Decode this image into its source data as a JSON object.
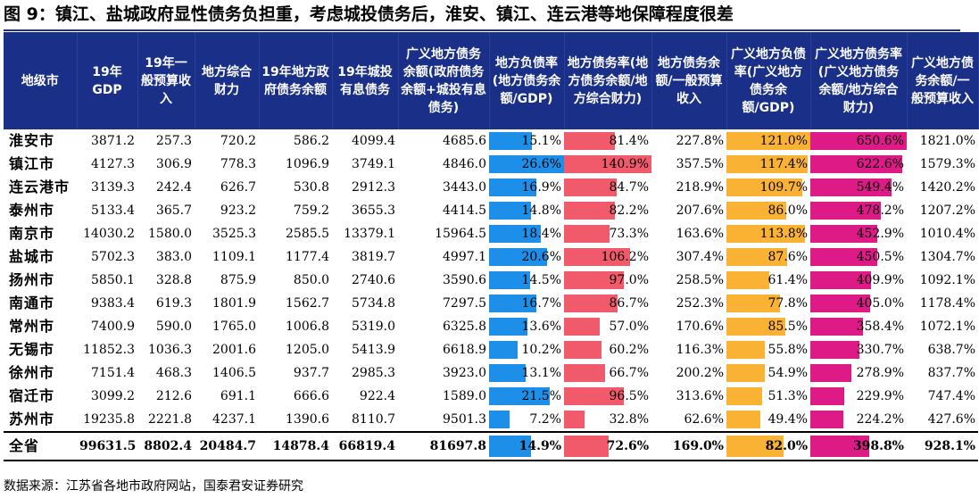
{
  "title": "图 9：镇江、盐城政府显性债务负担重，考虑城投债务后，淮安、镇江、连云港等地保障程度很差",
  "source": "数据来源：江苏省各地市政府网站，国泰君安证券研究",
  "colors": {
    "header_bg": "#1a2f88",
    "bar_blue": "#1e8fe8",
    "bar_red": "#f05a6a",
    "bar_orange": "#f9b234",
    "bar_magenta": "#dd1a86"
  },
  "headers": [
    "地级市",
    "19年GDP",
    "19年一般预算收入",
    "地方综合财力",
    "19年地方政府债务余额",
    "19年城投有息债务",
    "广义地方债务余额(政府债务余额+城投有息债务)",
    "地方负债率(地方债务余额/GDP)",
    "地方债务率(地方债务余额/地方综合财力)",
    "地方债务余额/一般预算收入",
    "广义地方负债率(广义地方债务余额/GDP)",
    "广义地方债务率(广义地方债务余额/地方综合财力)",
    "广义地方债务余额/一般预算收入"
  ],
  "rows": [
    {
      "city": "淮安市",
      "gdp": "3871.2",
      "budget": "257.3",
      "fiscal": "720.2",
      "gov_debt": "586.2",
      "lgfv_debt": "4099.4",
      "broad_debt": "4685.6",
      "r1": "15.1%",
      "r2": "81.4%",
      "r3": "227.8%",
      "r4": "121.0%",
      "r5": "650.6%",
      "r6": "1821.0%",
      "v1": 15.1,
      "v2": 81.4,
      "v4": 121.0,
      "v5": 650.6
    },
    {
      "city": "镇江市",
      "gdp": "4127.3",
      "budget": "306.9",
      "fiscal": "778.3",
      "gov_debt": "1096.9",
      "lgfv_debt": "3749.1",
      "broad_debt": "4846.0",
      "r1": "26.6%",
      "r2": "140.9%",
      "r3": "357.5%",
      "r4": "117.4%",
      "r5": "622.6%",
      "r6": "1579.3%",
      "v1": 26.6,
      "v2": 140.9,
      "v4": 117.4,
      "v5": 622.6
    },
    {
      "city": "连云港市",
      "gdp": "3139.3",
      "budget": "242.4",
      "fiscal": "626.7",
      "gov_debt": "530.8",
      "lgfv_debt": "2912.3",
      "broad_debt": "3443.0",
      "r1": "16.9%",
      "r2": "84.7%",
      "r3": "218.9%",
      "r4": "109.7%",
      "r5": "549.4%",
      "r6": "1420.2%",
      "v1": 16.9,
      "v2": 84.7,
      "v4": 109.7,
      "v5": 549.4
    },
    {
      "city": "泰州市",
      "gdp": "5133.4",
      "budget": "365.7",
      "fiscal": "923.2",
      "gov_debt": "759.2",
      "lgfv_debt": "3655.3",
      "broad_debt": "4414.5",
      "r1": "14.8%",
      "r2": "82.2%",
      "r3": "207.6%",
      "r4": "86.0%",
      "r5": "478.2%",
      "r6": "1207.2%",
      "v1": 14.8,
      "v2": 82.2,
      "v4": 86.0,
      "v5": 478.2
    },
    {
      "city": "南京市",
      "gdp": "14030.2",
      "budget": "1580.0",
      "fiscal": "3525.3",
      "gov_debt": "2585.5",
      "lgfv_debt": "13379.1",
      "broad_debt": "15964.5",
      "r1": "18.4%",
      "r2": "73.3%",
      "r3": "163.6%",
      "r4": "113.8%",
      "r5": "452.9%",
      "r6": "1010.4%",
      "v1": 18.4,
      "v2": 73.3,
      "v4": 113.8,
      "v5": 452.9
    },
    {
      "city": "盐城市",
      "gdp": "5702.3",
      "budget": "383.0",
      "fiscal": "1109.1",
      "gov_debt": "1177.4",
      "lgfv_debt": "3819.7",
      "broad_debt": "4997.1",
      "r1": "20.6%",
      "r2": "106.2%",
      "r3": "307.4%",
      "r4": "87.6%",
      "r5": "450.5%",
      "r6": "1304.7%",
      "v1": 20.6,
      "v2": 106.2,
      "v4": 87.6,
      "v5": 450.5
    },
    {
      "city": "扬州市",
      "gdp": "5850.1",
      "budget": "328.8",
      "fiscal": "875.9",
      "gov_debt": "850.0",
      "lgfv_debt": "2740.6",
      "broad_debt": "3590.6",
      "r1": "14.5%",
      "r2": "97.0%",
      "r3": "258.5%",
      "r4": "61.4%",
      "r5": "409.9%",
      "r6": "1092.1%",
      "v1": 14.5,
      "v2": 97.0,
      "v4": 61.4,
      "v5": 409.9
    },
    {
      "city": "南通市",
      "gdp": "9383.4",
      "budget": "619.3",
      "fiscal": "1801.9",
      "gov_debt": "1562.7",
      "lgfv_debt": "5734.8",
      "broad_debt": "7297.5",
      "r1": "16.7%",
      "r2": "86.7%",
      "r3": "252.3%",
      "r4": "77.8%",
      "r5": "405.0%",
      "r6": "1178.4%",
      "v1": 16.7,
      "v2": 86.7,
      "v4": 77.8,
      "v5": 405.0
    },
    {
      "city": "常州市",
      "gdp": "7400.9",
      "budget": "590.0",
      "fiscal": "1765.0",
      "gov_debt": "1006.8",
      "lgfv_debt": "5319.0",
      "broad_debt": "6325.8",
      "r1": "13.6%",
      "r2": "57.0%",
      "r3": "170.6%",
      "r4": "85.5%",
      "r5": "358.4%",
      "r6": "1072.1%",
      "v1": 13.6,
      "v2": 57.0,
      "v4": 85.5,
      "v5": 358.4
    },
    {
      "city": "无锡市",
      "gdp": "11852.3",
      "budget": "1036.3",
      "fiscal": "2001.6",
      "gov_debt": "1205.0",
      "lgfv_debt": "5413.9",
      "broad_debt": "6618.9",
      "r1": "10.2%",
      "r2": "60.2%",
      "r3": "116.3%",
      "r4": "55.8%",
      "r5": "330.7%",
      "r6": "638.7%",
      "v1": 10.2,
      "v2": 60.2,
      "v4": 55.8,
      "v5": 330.7
    },
    {
      "city": "徐州市",
      "gdp": "7151.4",
      "budget": "468.3",
      "fiscal": "1406.5",
      "gov_debt": "937.7",
      "lgfv_debt": "2985.3",
      "broad_debt": "3923.0",
      "r1": "13.1%",
      "r2": "66.7%",
      "r3": "200.2%",
      "r4": "54.9%",
      "r5": "278.9%",
      "r6": "837.7%",
      "v1": 13.1,
      "v2": 66.7,
      "v4": 54.9,
      "v5": 278.9
    },
    {
      "city": "宿迁市",
      "gdp": "3099.2",
      "budget": "212.6",
      "fiscal": "691.1",
      "gov_debt": "666.6",
      "lgfv_debt": "922.4",
      "broad_debt": "1589.0",
      "r1": "21.5%",
      "r2": "96.5%",
      "r3": "313.6%",
      "r4": "51.3%",
      "r5": "229.9%",
      "r6": "747.4%",
      "v1": 21.5,
      "v2": 96.5,
      "v4": 51.3,
      "v5": 229.9
    },
    {
      "city": "苏州市",
      "gdp": "19235.8",
      "budget": "2221.8",
      "fiscal": "4237.1",
      "gov_debt": "1390.6",
      "lgfv_debt": "8110.7",
      "broad_debt": "9501.3",
      "r1": "7.2%",
      "r2": "32.8%",
      "r3": "62.6%",
      "r4": "49.4%",
      "r5": "224.2%",
      "r6": "427.6%",
      "v1": 7.2,
      "v2": 32.8,
      "v4": 49.4,
      "v5": 224.2
    }
  ],
  "total": {
    "city": "全省",
    "gdp": "99631.5",
    "budget": "8802.4",
    "fiscal": "20484.7",
    "gov_debt": "14878.4",
    "lgfv_debt": "66819.4",
    "broad_debt": "81697.8",
    "r1": "14.9%",
    "r2": "72.6%",
    "r3": "169.0%",
    "r4": "82.0%",
    "r5": "398.8%",
    "r6": "928.1%",
    "v1": 14.9,
    "v2": 72.6,
    "v4": 82.0,
    "v5": 398.8
  }
}
